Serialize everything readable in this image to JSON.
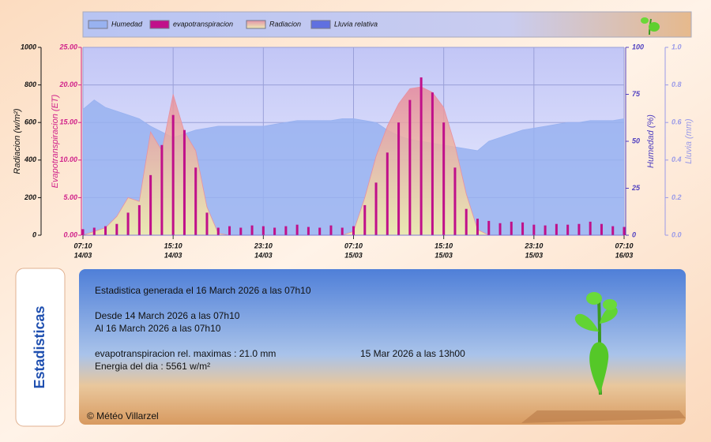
{
  "chart_data": {
    "type": "combo",
    "legend": "top",
    "grid": true,
    "x": [
      0,
      1,
      2,
      3,
      4,
      5,
      6,
      7,
      8,
      9,
      10,
      11,
      12,
      13,
      14,
      15,
      16,
      17,
      18,
      19,
      20,
      21,
      22,
      23,
      24,
      25,
      26,
      27,
      28,
      29,
      30,
      31,
      32,
      33,
      34,
      35,
      36,
      37,
      38,
      39,
      40,
      41,
      42,
      43,
      44,
      45,
      46,
      47,
      48
    ],
    "xlim": [
      0,
      48
    ],
    "xticks": [
      {
        "value": 0,
        "label": "07:10",
        "date": "14/03"
      },
      {
        "value": 8,
        "label": "15:10",
        "date": "14/03"
      },
      {
        "value": 16,
        "label": "23:10",
        "date": "14/03"
      },
      {
        "value": 24,
        "label": "07:10",
        "date": "15/03"
      },
      {
        "value": 32,
        "label": "15:10",
        "date": "15/03"
      },
      {
        "value": 40,
        "label": "23:10",
        "date": "15/03"
      },
      {
        "value": 48,
        "label": "07:10",
        "date": "16/03"
      }
    ],
    "axes": [
      {
        "label": "Radiacion (w/m²)",
        "side": "left",
        "color": "#111111",
        "lim": [
          0,
          1000
        ],
        "ticks": [
          0,
          200,
          400,
          600,
          800,
          1000
        ]
      },
      {
        "label": "Evapotranspiracion (ET)",
        "side": "left",
        "color": "#d0208a",
        "lim": [
          0,
          25
        ],
        "ticks": [
          {
            "value": 0,
            "label": "0.00"
          },
          {
            "value": 5,
            "label": "5.00"
          },
          {
            "value": 10,
            "label": "10.00"
          },
          {
            "value": 15,
            "label": "15.00"
          },
          {
            "value": 20,
            "label": "20.00"
          },
          {
            "value": 25,
            "label": "25.00"
          }
        ]
      },
      {
        "label": "Humedad (%)",
        "side": "right",
        "color": "#5040c0",
        "lim": [
          0,
          100
        ],
        "ticks": [
          0,
          25,
          50,
          75,
          100
        ]
      },
      {
        "label": "Lluvia (mm)",
        "side": "right",
        "color": "#9a9ae8",
        "lim": [
          0,
          1
        ],
        "ticks": [
          {
            "value": 0,
            "label": "0.0"
          },
          {
            "value": 0.2,
            "label": "0.2"
          },
          {
            "value": 0.4,
            "label": "0.4"
          },
          {
            "value": 0.6,
            "label": "0.6"
          },
          {
            "value": 0.8,
            "label": "0.8"
          },
          {
            "value": 1,
            "label": "1.0"
          }
        ]
      }
    ],
    "series": [
      {
        "name": "Humedad",
        "type": "area",
        "axis": 2,
        "color": "#98b2f0",
        "values": [
          67,
          72,
          68,
          66,
          64,
          62,
          58,
          55,
          52,
          54,
          56,
          57,
          58,
          58,
          58,
          58,
          58,
          59,
          60,
          61,
          61,
          61,
          61,
          62,
          62,
          61,
          60,
          56,
          53,
          51,
          50,
          49,
          48,
          47,
          46,
          45,
          50,
          52,
          54,
          56,
          57,
          58,
          59,
          60,
          60,
          61,
          61,
          61,
          62
        ]
      },
      {
        "name": "evapotranspiracion",
        "type": "bar",
        "axis": 1,
        "color": "#c0108a",
        "values": [
          0.8,
          1.0,
          1.2,
          1.5,
          3,
          4,
          8,
          12,
          16,
          14,
          9,
          3,
          1,
          1.2,
          1,
          1.3,
          1.2,
          1,
          1.2,
          1.4,
          1.1,
          1,
          1.3,
          1,
          1.2,
          4,
          7,
          11,
          15,
          18,
          21,
          19,
          15,
          9,
          3.5,
          2.2,
          1.9,
          1.6,
          1.8,
          1.7,
          1.4,
          1.3,
          1.5,
          1.4,
          1.5,
          1.8,
          1.5,
          1.2,
          1.1
        ]
      },
      {
        "name": "Radiacion",
        "type": "area",
        "axis": 0,
        "color": "#e890a0",
        "values": [
          0,
          20,
          40,
          100,
          200,
          180,
          550,
          450,
          750,
          550,
          450,
          150,
          10,
          0,
          0,
          0,
          0,
          0,
          0,
          0,
          0,
          0,
          0,
          0,
          20,
          200,
          420,
          580,
          700,
          780,
          790,
          760,
          680,
          480,
          220,
          30,
          0,
          0,
          0,
          0,
          0,
          0,
          0,
          0,
          0,
          0,
          0,
          0,
          0
        ]
      },
      {
        "name": "Lluvia relativa",
        "type": "area",
        "axis": 3,
        "color": "#6070e0",
        "values": [
          0,
          0,
          0,
          0,
          0,
          0,
          0,
          0,
          0,
          0,
          0,
          0,
          0,
          0,
          0,
          0,
          0,
          0,
          0,
          0,
          0,
          0,
          0,
          0,
          0,
          0,
          0,
          0,
          0,
          0,
          0,
          0,
          0,
          0,
          0,
          0,
          0,
          0,
          0,
          0,
          0,
          0,
          0,
          0,
          0,
          0,
          0,
          0,
          0
        ]
      }
    ]
  },
  "stats": {
    "tab": "Estadisticas",
    "generated": "Estadistica generada el 16 March 2026 a las 07h10",
    "from": "Desde 14 March 2026 a las 07h10",
    "to": "Al 16 March 2026 a las 07h10",
    "max": "evapotranspiracion rel. maximas : 21.0 mm",
    "max_time": "15 Mar 2026 a las 13h00",
    "energy": "Energia del dia : 5561 w/m²",
    "copyright": "© Météo Villarzel"
  }
}
